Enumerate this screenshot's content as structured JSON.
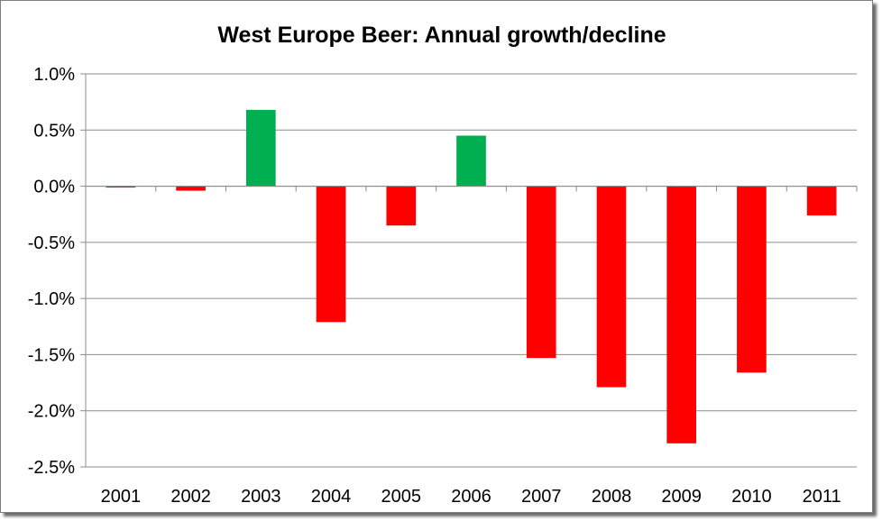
{
  "chart_data": {
    "type": "bar",
    "title": "West Europe Beer: Annual growth/decline",
    "xlabel": "",
    "ylabel": "",
    "categories": [
      "2001",
      "2002",
      "2003",
      "2004",
      "2005",
      "2006",
      "2007",
      "2008",
      "2009",
      "2010",
      "2011"
    ],
    "values": [
      -0.01,
      -0.04,
      0.68,
      -1.21,
      -0.35,
      0.45,
      -1.53,
      -1.79,
      -2.29,
      -1.66,
      -0.26
    ],
    "value_unit": "%",
    "ylim": [
      -2.5,
      1.0
    ],
    "yticks": [
      "1.0%",
      "0.5%",
      "0.0%",
      "-0.5%",
      "-1.0%",
      "-1.5%",
      "-2.0%",
      "-2.5%"
    ],
    "ytick_values": [
      1.0,
      0.5,
      0.0,
      -0.5,
      -1.0,
      -1.5,
      -2.0,
      -2.5
    ],
    "grid": true,
    "legend": "none",
    "colors": {
      "positive": "#00b050",
      "negative": "#ff0000",
      "grid": "#8c8c8c",
      "axis": "#8c8c8c"
    }
  }
}
